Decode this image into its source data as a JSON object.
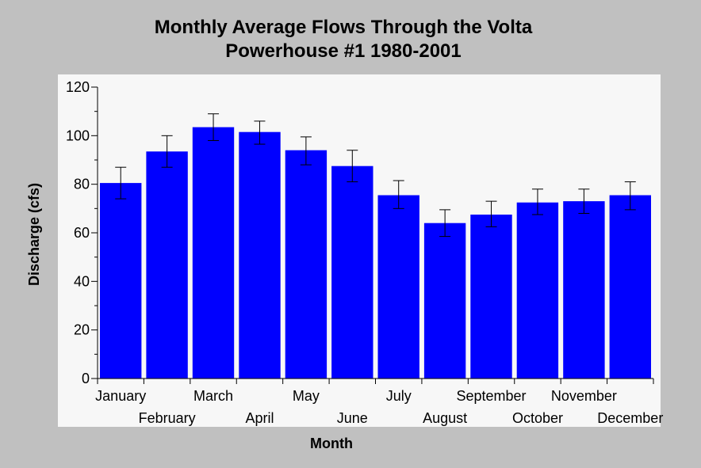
{
  "colors": {
    "background": "#c0c0c0",
    "plot_background": "#f7f7f7",
    "bar": "#0000ff",
    "error_bar": "#000000"
  },
  "chart_data": {
    "type": "bar",
    "title": "Monthly Average Flows Through the Volta",
    "subtitle": "Powerhouse #1 1980-2001",
    "xlabel": "Month",
    "ylabel": "Discharge (cfs)",
    "categories": [
      "January",
      "February",
      "March",
      "April",
      "May",
      "June",
      "July",
      "August",
      "September",
      "October",
      "November",
      "December"
    ],
    "values": [
      80.5,
      93.5,
      103.5,
      101.5,
      94,
      87.5,
      75.5,
      64,
      67.5,
      72.5,
      73,
      75.5
    ],
    "error_low": [
      74,
      87,
      98,
      96.5,
      88,
      81,
      70,
      58.5,
      62.5,
      67.5,
      68,
      69.5
    ],
    "error_high": [
      87,
      100,
      109,
      106,
      99.5,
      94,
      81.5,
      69.5,
      73,
      78,
      78,
      81
    ],
    "ylim": [
      0,
      120
    ],
    "yticks": [
      0,
      20,
      40,
      60,
      80,
      100,
      120
    ],
    "grid": false,
    "legend": "none"
  }
}
